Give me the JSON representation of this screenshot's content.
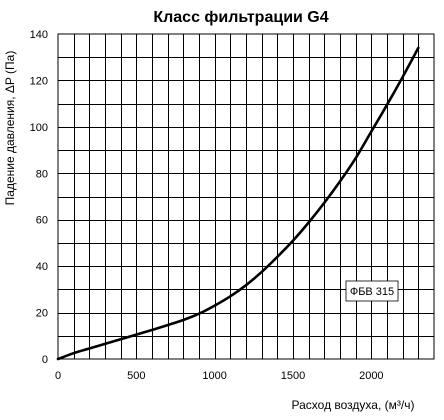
{
  "chart_data": {
    "type": "line",
    "title": "Класс фильтрации G4",
    "xlabel": "Расход воздуха, (м³/ч)",
    "ylabel": "Падение давления, ΔP (Па)",
    "xlim": [
      0,
      2400
    ],
    "ylim": [
      0,
      140
    ],
    "xticks": [
      0,
      500,
      1000,
      1500,
      2000
    ],
    "yticks": [
      0,
      20,
      40,
      60,
      80,
      100,
      120,
      140
    ],
    "x_minor_step": 100,
    "y_minor_step": 10,
    "grid": true,
    "legend_position": "inside-right",
    "series": [
      {
        "name": "ФБВ 315",
        "color": "#000000",
        "x": [
          0,
          100,
          200,
          300,
          400,
          500,
          600,
          700,
          800,
          900,
          1000,
          1100,
          1200,
          1300,
          1400,
          1500,
          1600,
          1700,
          1800,
          1900,
          2000,
          2100,
          2200,
          2300
        ],
        "y": [
          0,
          2.5,
          4.5,
          6.5,
          8.5,
          10.5,
          12.5,
          14.6,
          16.8,
          19.5,
          23,
          27,
          31.8,
          37.5,
          44,
          51,
          58.8,
          67.3,
          76.5,
          86.5,
          98,
          109.5,
          121.5,
          134
        ]
      }
    ]
  }
}
